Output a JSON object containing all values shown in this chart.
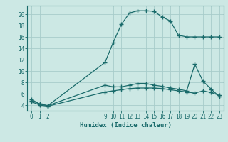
{
  "xlabel": "Humidex (Indice chaleur)",
  "bg_color": "#cce8e4",
  "grid_color": "#a8ccca",
  "line_color": "#1a6b6b",
  "xlim": [
    -0.5,
    23.5
  ],
  "ylim": [
    3.0,
    21.5
  ],
  "yticks": [
    4,
    6,
    8,
    10,
    12,
    14,
    16,
    18,
    20
  ],
  "xticks": [
    0,
    1,
    2,
    9,
    10,
    11,
    12,
    13,
    14,
    15,
    16,
    17,
    18,
    19,
    20,
    21,
    22,
    23
  ],
  "line1_x": [
    0,
    1,
    2,
    9,
    10,
    11,
    12,
    13,
    14,
    15,
    16,
    17,
    18,
    19,
    20,
    21,
    22,
    23
  ],
  "line1_y": [
    5.0,
    4.2,
    3.9,
    11.5,
    15.0,
    18.2,
    20.2,
    20.6,
    20.6,
    20.5,
    19.5,
    18.8,
    16.3,
    16.0,
    16.0,
    16.0,
    16.0,
    16.0
  ],
  "line2_x": [
    0,
    1,
    2,
    9,
    10,
    11,
    12,
    13,
    14,
    15,
    16,
    17,
    18,
    19,
    20,
    21,
    22,
    23
  ],
  "line2_y": [
    4.8,
    4.2,
    3.9,
    7.5,
    7.2,
    7.2,
    7.5,
    7.8,
    7.8,
    7.5,
    7.3,
    7.0,
    6.8,
    6.5,
    11.2,
    8.2,
    6.8,
    5.5
  ],
  "line3_x": [
    0,
    1,
    2,
    9,
    10,
    11,
    12,
    13,
    14,
    15,
    16,
    17,
    18,
    19,
    20,
    21,
    22,
    23
  ],
  "line3_y": [
    4.6,
    4.0,
    3.8,
    6.3,
    6.5,
    6.7,
    6.9,
    7.0,
    7.0,
    7.0,
    6.9,
    6.7,
    6.5,
    6.3,
    6.1,
    6.5,
    6.2,
    5.7
  ]
}
